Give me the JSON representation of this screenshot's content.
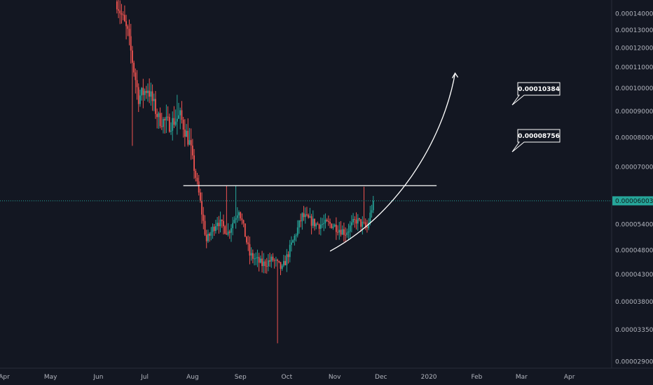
{
  "colors": {
    "background": "#131722",
    "axis_text": "#b2b5be",
    "axis_line": "#2a2e39",
    "up": "#26a69a",
    "down": "#ef5350",
    "current_price": "#26a69a",
    "drawing": "#ffffff"
  },
  "chart_data": {
    "type": "candlestick",
    "y_scale": "log",
    "ylim": [
      2.85e-05,
      0.000149
    ],
    "y_ticks": [
      "0.00014000",
      "0.00013000",
      "0.00012000",
      "0.00011000",
      "0.00010000",
      "0.00009000",
      "0.00008000",
      "0.00007000",
      "0.00005400",
      "0.00004800",
      "0.00004300",
      "0.00003800",
      "0.00003350",
      "0.00002900"
    ],
    "x_ticks": [
      "Apr",
      "May",
      "Jun",
      "Jul",
      "Aug",
      "Sep",
      "Oct",
      "Nov",
      "Dec",
      "2020",
      "Feb",
      "Mar",
      "Apr"
    ],
    "current_price": "0.00006003",
    "annotations": {
      "resistance_level": 6.43e-05,
      "target_1": "0.00008756",
      "target_2": "0.00010384"
    },
    "series_keypoints": {
      "date": [
        "2019-06-13",
        "2019-06-20",
        "2019-06-27",
        "2019-07-03",
        "2019-07-10",
        "2019-07-17",
        "2019-07-24",
        "2019-07-30",
        "2019-08-05",
        "2019-08-10",
        "2019-08-17",
        "2019-08-24",
        "2019-08-31",
        "2019-09-07",
        "2019-09-15",
        "2019-09-22",
        "2019-09-28",
        "2019-10-05",
        "2019-10-11",
        "2019-10-20",
        "2019-10-30",
        "2019-11-08",
        "2019-11-15",
        "2019-11-22",
        "2019-11-26"
      ],
      "close": [
        0.000148,
        0.000128,
        9.6e-05,
        0.0001,
        8.7e-05,
        8.5e-05,
        8.8e-05,
        7.8e-05,
        6.2e-05,
        5e-05,
        5.5e-05,
        5.2e-05,
        5.8e-05,
        4.7e-05,
        4.5e-05,
        4.6e-05,
        4.4e-05,
        5e-05,
        5.6e-05,
        5.4e-05,
        5.4e-05,
        5.2e-05,
        5.5e-05,
        5.3e-05,
        6e-05
      ]
    }
  }
}
